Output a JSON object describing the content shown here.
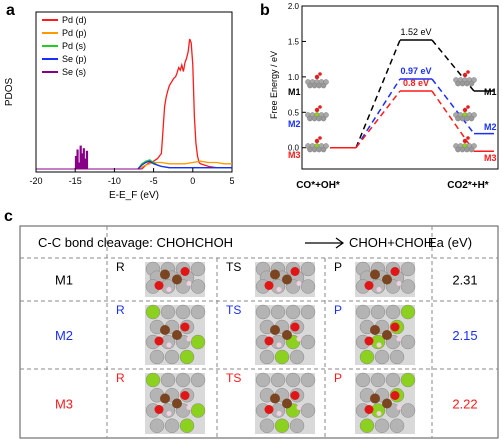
{
  "panels": {
    "a": "a",
    "b": "b",
    "c": "c"
  },
  "colors": {
    "red": "#ff1a1a",
    "orange": "#ff9900",
    "green": "#22cc22",
    "blue": "#1a2fff",
    "purple": "#880088",
    "black": "#000000"
  },
  "chart_data": [
    {
      "type": "line",
      "ylabel": "PDOS",
      "xlabel": "E-E_F (eV)",
      "xlim": [
        -20,
        5
      ],
      "x_ticks": [
        "-20",
        "-15",
        "-10",
        "-5",
        "0",
        "5"
      ],
      "legend": "top-left",
      "series": [
        {
          "name": "Pd (d)",
          "color": "#ff1a1a",
          "x": [
            -6.5,
            -6.0,
            -5.5,
            -5.0,
            -4.5,
            -4.0,
            -3.8,
            -3.6,
            -3.4,
            -3.2,
            -3.0,
            -2.8,
            -2.6,
            -2.4,
            -2.2,
            -2.0,
            -1.8,
            -1.6,
            -1.4,
            -1.2,
            -1.0,
            -0.8,
            -0.6,
            -0.4,
            -0.2,
            0.0,
            0.2,
            0.4,
            0.6,
            0.8,
            1.0,
            1.5,
            2.0,
            3.0,
            4.0,
            5.0
          ],
          "y": [
            0.0,
            0.03,
            0.05,
            0.06,
            0.08,
            0.12,
            0.3,
            0.48,
            0.55,
            0.6,
            0.64,
            0.66,
            0.68,
            0.7,
            0.71,
            0.74,
            0.78,
            0.76,
            0.8,
            0.75,
            0.82,
            0.85,
            0.9,
            1.0,
            0.97,
            0.8,
            0.4,
            0.2,
            0.1,
            0.05,
            0.04,
            0.03,
            0.02,
            0.01,
            0.01,
            0.01
          ]
        },
        {
          "name": "Pd (p)",
          "color": "#ff9900",
          "x": [
            -7,
            -6,
            -5,
            -4,
            -3,
            -2,
            -1,
            0,
            1,
            2,
            3,
            4,
            5
          ],
          "y": [
            0,
            0.03,
            0.05,
            0.05,
            0.04,
            0.04,
            0.04,
            0.05,
            0.06,
            0.05,
            0.05,
            0.04,
            0.04
          ]
        },
        {
          "name": "Pd (s)",
          "color": "#22cc22",
          "x": [
            -7,
            -6.5,
            -6,
            -5.5,
            -5,
            -4.5,
            -4,
            -3,
            -2,
            -1,
            0,
            1,
            2,
            3,
            4,
            5
          ],
          "y": [
            0,
            0.04,
            0.06,
            0.07,
            0.05,
            0.03,
            0.02,
            0.01,
            0.01,
            0.01,
            0.01,
            0.01,
            0.01,
            0.01,
            0.01,
            0.01
          ]
        },
        {
          "name": "Se (p)",
          "color": "#1a2fff",
          "x": [
            -7,
            -6.5,
            -6,
            -5.5,
            -5,
            -4.5,
            -4,
            -3,
            -2,
            -1,
            0,
            1,
            2,
            3,
            4,
            5
          ],
          "y": [
            0,
            0.03,
            0.05,
            0.06,
            0.04,
            0.03,
            0.02,
            0.01,
            0.01,
            0.01,
            0.01,
            0.01,
            0.01,
            0.01,
            0.01,
            0.01
          ]
        },
        {
          "name": "Se (s)",
          "color": "#880088",
          "x": [
            -14.9,
            -14.7,
            -14.5,
            -14.3,
            -14.1,
            -13.9,
            -13.7,
            -13.5
          ],
          "y": [
            0.1,
            0.15,
            0.05,
            0.18,
            0.12,
            0.16,
            0.08,
            0.14
          ]
        }
      ]
    },
    {
      "type": "line",
      "ylabel": "Free Energy / eV",
      "ylim": [
        -0.3,
        2.0
      ],
      "y_ticks": [
        "0.0",
        "0.5",
        "1.0",
        "1.5",
        "2.0"
      ],
      "categories": [
        "CO*+OH*",
        "",
        "CO2*+H*"
      ],
      "series": [
        {
          "name": "M1",
          "color": "#000000",
          "values": [
            0.0,
            1.52,
            0.8
          ],
          "label": "1.52 eV"
        },
        {
          "name": "M2",
          "color": "#1a2fff",
          "values": [
            0.0,
            0.97,
            0.2
          ],
          "label": "0.97 eV"
        },
        {
          "name": "M3",
          "color": "#ff1a1a",
          "values": [
            0.0,
            0.8,
            -0.05
          ],
          "label": "0.8 eV"
        }
      ]
    },
    {
      "type": "table",
      "header": {
        "reaction": "C-C bond cleavage:  CHOHCHOH",
        "product": "CHOH+CHOH",
        "ea": "Ea (eV)"
      },
      "stage_labels": [
        "R",
        "TS",
        "P"
      ],
      "rows": [
        {
          "model": "M1",
          "color": "#000000",
          "ea": "2.31"
        },
        {
          "model": "M2",
          "color": "#1a2fff",
          "ea": "2.15"
        },
        {
          "model": "M3",
          "color": "#ff1a1a",
          "ea": "2.22"
        }
      ]
    }
  ]
}
